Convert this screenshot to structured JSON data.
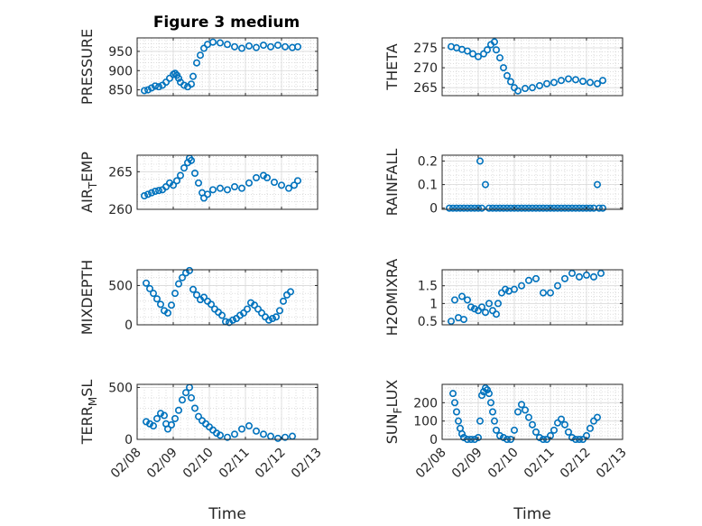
{
  "figure_title": "Figure 3 medium",
  "marker_color": "#0072bd",
  "chart_data": [
    {
      "type": "scatter",
      "ylabel_text": "PRESSURE",
      "ylabel_sub": "",
      "ylabel_tail": "",
      "ylim": [
        835,
        985
      ],
      "yticks": [
        850,
        900,
        950
      ],
      "ytick_labels": [
        "850",
        "900",
        "950"
      ],
      "xlim": [
        0,
        5
      ],
      "xtick_labels": [],
      "xlabel": "",
      "points": [
        [
          0.2,
          848
        ],
        [
          0.3,
          850
        ],
        [
          0.4,
          855
        ],
        [
          0.5,
          860
        ],
        [
          0.6,
          858
        ],
        [
          0.7,
          862
        ],
        [
          0.8,
          870
        ],
        [
          0.9,
          880
        ],
        [
          1.0,
          890
        ],
        [
          1.05,
          893
        ],
        [
          1.1,
          888
        ],
        [
          1.15,
          880
        ],
        [
          1.2,
          870
        ],
        [
          1.3,
          862
        ],
        [
          1.4,
          858
        ],
        [
          1.5,
          865
        ],
        [
          1.55,
          885
        ],
        [
          1.65,
          920
        ],
        [
          1.75,
          940
        ],
        [
          1.85,
          958
        ],
        [
          1.95,
          968
        ],
        [
          2.1,
          974
        ],
        [
          2.3,
          972
        ],
        [
          2.5,
          968
        ],
        [
          2.7,
          962
        ],
        [
          2.9,
          958
        ],
        [
          3.1,
          964
        ],
        [
          3.3,
          960
        ],
        [
          3.5,
          966
        ],
        [
          3.7,
          962
        ],
        [
          3.9,
          966
        ],
        [
          4.1,
          962
        ],
        [
          4.3,
          960
        ],
        [
          4.45,
          962
        ]
      ]
    },
    {
      "type": "scatter",
      "ylabel_text": "THETA",
      "ylabel_sub": "",
      "ylabel_tail": "",
      "ylim": [
        263,
        277.5
      ],
      "yticks": [
        265,
        270,
        275
      ],
      "ytick_labels": [
        "265",
        "270",
        "275"
      ],
      "xlim": [
        0,
        5
      ],
      "xtick_labels": [],
      "xlabel": "",
      "points": [
        [
          0.25,
          275.3
        ],
        [
          0.4,
          275.0
        ],
        [
          0.55,
          274.6
        ],
        [
          0.7,
          274.2
        ],
        [
          0.85,
          273.5
        ],
        [
          1.0,
          272.8
        ],
        [
          1.15,
          273.5
        ],
        [
          1.25,
          274.5
        ],
        [
          1.35,
          275.8
        ],
        [
          1.45,
          276.5
        ],
        [
          1.5,
          274.5
        ],
        [
          1.6,
          272.5
        ],
        [
          1.7,
          270.0
        ],
        [
          1.8,
          268.0
        ],
        [
          1.9,
          266.5
        ],
        [
          2.0,
          265.0
        ],
        [
          2.1,
          264.2
        ],
        [
          2.3,
          264.8
        ],
        [
          2.5,
          265.0
        ],
        [
          2.7,
          265.5
        ],
        [
          2.9,
          266.0
        ],
        [
          3.1,
          266.3
        ],
        [
          3.3,
          266.8
        ],
        [
          3.5,
          267.2
        ],
        [
          3.7,
          267.0
        ],
        [
          3.9,
          266.6
        ],
        [
          4.1,
          266.3
        ],
        [
          4.3,
          266.0
        ],
        [
          4.45,
          266.8
        ]
      ]
    },
    {
      "type": "scatter",
      "ylabel_text": "AIR",
      "ylabel_sub": "T",
      "ylabel_tail": "EMP",
      "ylim": [
        260,
        267.2
      ],
      "yticks": [
        260,
        265
      ],
      "ytick_labels": [
        "260",
        "265"
      ],
      "xlim": [
        0,
        5
      ],
      "xtick_labels": [],
      "xlabel": "",
      "points": [
        [
          0.2,
          261.8
        ],
        [
          0.3,
          262.0
        ],
        [
          0.4,
          262.2
        ],
        [
          0.5,
          262.4
        ],
        [
          0.6,
          262.5
        ],
        [
          0.7,
          262.6
        ],
        [
          0.8,
          263.0
        ],
        [
          0.9,
          263.5
        ],
        [
          1.0,
          263.2
        ],
        [
          1.1,
          263.8
        ],
        [
          1.2,
          264.5
        ],
        [
          1.3,
          265.5
        ],
        [
          1.4,
          266.2
        ],
        [
          1.45,
          266.8
        ],
        [
          1.5,
          266.5
        ],
        [
          1.6,
          264.8
        ],
        [
          1.7,
          263.5
        ],
        [
          1.8,
          262.2
        ],
        [
          1.85,
          261.5
        ],
        [
          1.95,
          262.0
        ],
        [
          2.1,
          262.6
        ],
        [
          2.3,
          262.8
        ],
        [
          2.5,
          262.6
        ],
        [
          2.7,
          263.0
        ],
        [
          2.9,
          262.8
        ],
        [
          3.1,
          263.5
        ],
        [
          3.3,
          264.2
        ],
        [
          3.5,
          264.5
        ],
        [
          3.6,
          264.2
        ],
        [
          3.8,
          263.6
        ],
        [
          4.0,
          263.2
        ],
        [
          4.2,
          262.8
        ],
        [
          4.35,
          263.2
        ],
        [
          4.45,
          263.8
        ]
      ]
    },
    {
      "type": "scatter",
      "ylabel_text": "RAINFALL",
      "ylabel_sub": "",
      "ylabel_tail": "",
      "ylim": [
        -0.005,
        0.225
      ],
      "yticks": [
        0,
        0.1,
        0.2
      ],
      "ytick_labels": [
        "0",
        "0.1",
        "0.2"
      ],
      "xlim": [
        0,
        5
      ],
      "xtick_labels": [],
      "xlabel": "",
      "points": [
        [
          0.2,
          0
        ],
        [
          0.3,
          0
        ],
        [
          0.4,
          0
        ],
        [
          0.5,
          0
        ],
        [
          0.6,
          0
        ],
        [
          0.7,
          0
        ],
        [
          0.8,
          0
        ],
        [
          0.9,
          0
        ],
        [
          1.0,
          0
        ],
        [
          1.05,
          0.2
        ],
        [
          1.1,
          0
        ],
        [
          1.2,
          0.1
        ],
        [
          1.3,
          0
        ],
        [
          1.4,
          0
        ],
        [
          1.5,
          0
        ],
        [
          1.6,
          0
        ],
        [
          1.7,
          0
        ],
        [
          1.8,
          0
        ],
        [
          1.9,
          0
        ],
        [
          2.0,
          0
        ],
        [
          2.1,
          0
        ],
        [
          2.2,
          0
        ],
        [
          2.3,
          0
        ],
        [
          2.4,
          0
        ],
        [
          2.5,
          0
        ],
        [
          2.6,
          0
        ],
        [
          2.7,
          0
        ],
        [
          2.8,
          0
        ],
        [
          2.9,
          0
        ],
        [
          3.0,
          0
        ],
        [
          3.1,
          0
        ],
        [
          3.2,
          0
        ],
        [
          3.3,
          0
        ],
        [
          3.4,
          0
        ],
        [
          3.5,
          0
        ],
        [
          3.6,
          0
        ],
        [
          3.7,
          0
        ],
        [
          3.8,
          0
        ],
        [
          3.9,
          0
        ],
        [
          4.0,
          0
        ],
        [
          4.1,
          0
        ],
        [
          4.2,
          0
        ],
        [
          4.3,
          0.1
        ],
        [
          4.35,
          0
        ],
        [
          4.45,
          0
        ]
      ]
    },
    {
      "type": "scatter",
      "ylabel_text": "MIXDEPTH",
      "ylabel_sub": "",
      "ylabel_tail": "",
      "ylim": [
        0,
        700
      ],
      "yticks": [
        0,
        500
      ],
      "ytick_labels": [
        "0",
        "500"
      ],
      "xlim": [
        0,
        5
      ],
      "xtick_labels": [],
      "xlabel": "",
      "points": [
        [
          0.25,
          530
        ],
        [
          0.35,
          460
        ],
        [
          0.45,
          400
        ],
        [
          0.55,
          330
        ],
        [
          0.65,
          260
        ],
        [
          0.75,
          180
        ],
        [
          0.85,
          150
        ],
        [
          0.95,
          250
        ],
        [
          1.05,
          400
        ],
        [
          1.15,
          520
        ],
        [
          1.25,
          600
        ],
        [
          1.35,
          660
        ],
        [
          1.45,
          690
        ],
        [
          1.55,
          450
        ],
        [
          1.65,
          380
        ],
        [
          1.75,
          320
        ],
        [
          1.85,
          350
        ],
        [
          1.95,
          300
        ],
        [
          2.05,
          260
        ],
        [
          2.15,
          200
        ],
        [
          2.25,
          160
        ],
        [
          2.35,
          120
        ],
        [
          2.45,
          40
        ],
        [
          2.55,
          30
        ],
        [
          2.65,
          60
        ],
        [
          2.75,
          80
        ],
        [
          2.85,
          120
        ],
        [
          2.95,
          150
        ],
        [
          3.05,
          200
        ],
        [
          3.15,
          280
        ],
        [
          3.25,
          250
        ],
        [
          3.35,
          200
        ],
        [
          3.45,
          150
        ],
        [
          3.55,
          100
        ],
        [
          3.65,
          60
        ],
        [
          3.75,
          80
        ],
        [
          3.85,
          100
        ],
        [
          3.95,
          180
        ],
        [
          4.05,
          300
        ],
        [
          4.15,
          380
        ],
        [
          4.25,
          420
        ]
      ]
    },
    {
      "type": "scatter",
      "ylabel_text": "H2OMIXRA",
      "ylabel_sub": "",
      "ylabel_tail": "",
      "ylim": [
        0.4,
        1.95
      ],
      "yticks": [
        0.5,
        1,
        1.5
      ],
      "ytick_labels": [
        "0.5",
        "1",
        "1.5"
      ],
      "xlim": [
        0,
        5
      ],
      "xtick_labels": [],
      "xlabel": "",
      "points": [
        [
          0.25,
          0.5
        ],
        [
          0.35,
          1.1
        ],
        [
          0.45,
          0.6
        ],
        [
          0.55,
          1.2
        ],
        [
          0.6,
          0.55
        ],
        [
          0.7,
          1.1
        ],
        [
          0.8,
          0.9
        ],
        [
          0.9,
          0.85
        ],
        [
          1.0,
          0.8
        ],
        [
          1.1,
          0.9
        ],
        [
          1.2,
          0.75
        ],
        [
          1.3,
          1.0
        ],
        [
          1.4,
          0.8
        ],
        [
          1.5,
          0.7
        ],
        [
          1.55,
          1.0
        ],
        [
          1.65,
          1.3
        ],
        [
          1.75,
          1.4
        ],
        [
          1.85,
          1.35
        ],
        [
          2.0,
          1.4
        ],
        [
          2.2,
          1.5
        ],
        [
          2.4,
          1.65
        ],
        [
          2.6,
          1.7
        ],
        [
          2.8,
          1.3
        ],
        [
          3.0,
          1.3
        ],
        [
          3.2,
          1.5
        ],
        [
          3.4,
          1.7
        ],
        [
          3.6,
          1.85
        ],
        [
          3.8,
          1.75
        ],
        [
          4.0,
          1.8
        ],
        [
          4.2,
          1.75
        ],
        [
          4.4,
          1.85
        ]
      ]
    },
    {
      "type": "scatter",
      "ylabel_text": "TERR",
      "ylabel_sub": "M",
      "ylabel_tail": "SL",
      "ylim": [
        0,
        530
      ],
      "yticks": [
        0,
        500
      ],
      "ytick_labels": [
        "0",
        "500"
      ],
      "xlim": [
        0,
        5
      ],
      "xtick_labels": [
        "02/08",
        "02/09",
        "02/10",
        "02/11",
        "02/12",
        "02/13"
      ],
      "xlabel": "Time",
      "points": [
        [
          0.25,
          170
        ],
        [
          0.35,
          150
        ],
        [
          0.45,
          130
        ],
        [
          0.55,
          200
        ],
        [
          0.65,
          250
        ],
        [
          0.75,
          230
        ],
        [
          0.8,
          150
        ],
        [
          0.85,
          100
        ],
        [
          0.95,
          140
        ],
        [
          1.05,
          200
        ],
        [
          1.15,
          280
        ],
        [
          1.25,
          380
        ],
        [
          1.35,
          450
        ],
        [
          1.45,
          500
        ],
        [
          1.5,
          400
        ],
        [
          1.6,
          300
        ],
        [
          1.7,
          220
        ],
        [
          1.8,
          180
        ],
        [
          1.9,
          150
        ],
        [
          2.0,
          120
        ],
        [
          2.1,
          90
        ],
        [
          2.2,
          60
        ],
        [
          2.3,
          40
        ],
        [
          2.5,
          20
        ],
        [
          2.7,
          50
        ],
        [
          2.9,
          100
        ],
        [
          3.1,
          130
        ],
        [
          3.3,
          80
        ],
        [
          3.5,
          50
        ],
        [
          3.7,
          30
        ],
        [
          3.9,
          10
        ],
        [
          4.1,
          20
        ],
        [
          4.3,
          30
        ]
      ]
    },
    {
      "type": "scatter",
      "ylabel_text": "SUN",
      "ylabel_sub": "F",
      "ylabel_tail": "LUX",
      "ylim": [
        0,
        300
      ],
      "yticks": [
        0,
        100,
        200
      ],
      "ytick_labels": [
        "0",
        "100",
        "200"
      ],
      "xlim": [
        0,
        5
      ],
      "xtick_labels": [
        "02/08",
        "02/09",
        "02/10",
        "02/11",
        "02/12",
        "02/13"
      ],
      "xlabel": "Time",
      "points": [
        [
          0.3,
          250
        ],
        [
          0.35,
          200
        ],
        [
          0.4,
          150
        ],
        [
          0.45,
          100
        ],
        [
          0.5,
          60
        ],
        [
          0.55,
          30
        ],
        [
          0.6,
          10
        ],
        [
          0.7,
          0
        ],
        [
          0.8,
          0
        ],
        [
          0.9,
          0
        ],
        [
          1.0,
          10
        ],
        [
          1.05,
          100
        ],
        [
          1.1,
          240
        ],
        [
          1.15,
          260
        ],
        [
          1.2,
          280
        ],
        [
          1.25,
          270
        ],
        [
          1.3,
          250
        ],
        [
          1.35,
          200
        ],
        [
          1.4,
          150
        ],
        [
          1.45,
          100
        ],
        [
          1.5,
          50
        ],
        [
          1.6,
          20
        ],
        [
          1.7,
          10
        ],
        [
          1.8,
          0
        ],
        [
          1.9,
          0
        ],
        [
          2.0,
          50
        ],
        [
          2.1,
          150
        ],
        [
          2.2,
          190
        ],
        [
          2.3,
          160
        ],
        [
          2.4,
          120
        ],
        [
          2.5,
          80
        ],
        [
          2.6,
          40
        ],
        [
          2.7,
          10
        ],
        [
          2.8,
          0
        ],
        [
          2.9,
          0
        ],
        [
          3.0,
          20
        ],
        [
          3.1,
          50
        ],
        [
          3.2,
          90
        ],
        [
          3.3,
          110
        ],
        [
          3.4,
          80
        ],
        [
          3.5,
          40
        ],
        [
          3.6,
          10
        ],
        [
          3.7,
          0
        ],
        [
          3.8,
          0
        ],
        [
          3.9,
          0
        ],
        [
          4.0,
          20
        ],
        [
          4.1,
          60
        ],
        [
          4.2,
          100
        ],
        [
          4.3,
          120
        ]
      ]
    }
  ]
}
